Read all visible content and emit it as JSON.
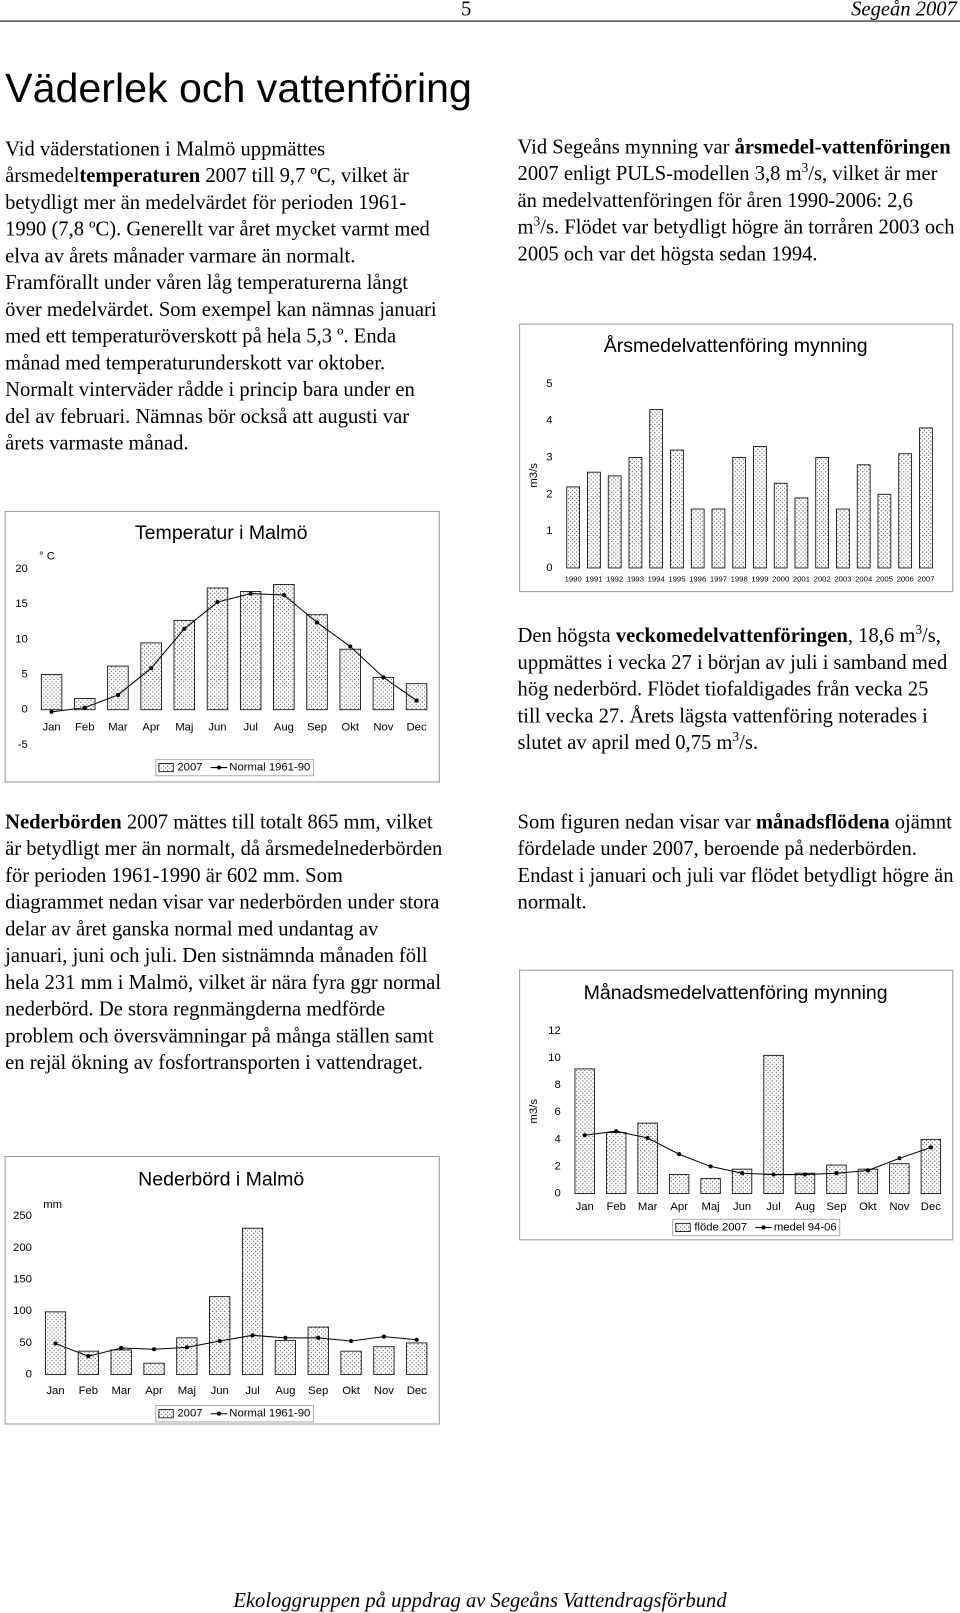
{
  "header": {
    "page": "5",
    "publication": "Segeån 2007"
  },
  "title": "Väderlek och vattenföring",
  "paragraphs": [
    [
      {
        "text": "Vid väderstationen i Malmö uppmättes årsmedel"
      },
      {
        "text": "temperaturen",
        "bold": true
      },
      {
        "text": " 2007 till 9,7 ºC, vilket är betydligt mer än medelvärdet för perioden 1961-1990 (7,8 ºC). Generellt var året mycket varmt med elva av årets månader varmare än normalt. Framförallt under våren låg temperaturerna långt över medelvärdet. Som exempel kan nämnas januari med ett temperaturöverskott på hela 5,3 º. Enda månad med temperaturunderskott var oktober. Normalt vinterväder rådde i princip bara under en del av februari. Nämnas bör också att augusti var årets varmaste månad."
      }
    ],
    [
      {
        "text": "Nederbörden",
        "bold": true
      },
      {
        "text": " 2007 mättes till totalt 865 mm, vilket är betydligt mer än normalt, då årsmedelnederbörden för perioden 1961-1990 är 602 mm. Som diagrammet nedan visar var nederbörden under stora delar av året ganska normal med undantag av januari, juni och juli. Den sistnämnda månaden föll hela 231 mm i Malmö, vilket är nära fyra ggr normal nederbörd. De stora regnmängderna medförde problem och översvämningar på många ställen samt en rejäl ökning av fosfortransporten i vattendraget."
      }
    ],
    [
      {
        "text": "Vid Segeåns mynning var "
      },
      {
        "text": "årsmedel-vattenföringen",
        "bold": true
      },
      {
        "text": " 2007 enligt PULS-modellen 3,8 m"
      },
      {
        "text": "3",
        "sup": true
      },
      {
        "text": "/s, vilket är mer än medelvattenföringen för åren 1990-2006: 2,6 m"
      },
      {
        "text": "3",
        "sup": true
      },
      {
        "text": "/s. Flödet var betydligt högre än torråren 2003 och 2005 och var det högsta sedan 1994."
      }
    ],
    [
      {
        "text": "Den högsta "
      },
      {
        "text": "veckomedelvattenföringen",
        "bold": true
      },
      {
        "text": ", 18,6 m"
      },
      {
        "text": "3",
        "sup": true
      },
      {
        "text": "/s, uppmättes i vecka 27 i början av juli i samband med hög nederbörd. Flödet tiofaldigades från vecka 25 till vecka 27. Årets lägsta vattenföring noterades i slutet av april med 0,75 m"
      },
      {
        "text": "3",
        "sup": true
      },
      {
        "text": "/s."
      }
    ],
    [
      {
        "text": "Som figuren nedan visar var "
      },
      {
        "text": "månadsflödena",
        "bold": true
      },
      {
        "text": " ojämnt fördelade under 2007, beroende på nederbörden. Endast i januari och juli var flödet betydligt högre än normalt."
      }
    ]
  ],
  "footer": "Ekologgruppen på uppdrag av Segeåns Vattendragsförbund",
  "chart_data": [
    {
      "type": "bar",
      "title": "Temperatur i Malmö",
      "unit": "° C",
      "categories": [
        "Jan",
        "Feb",
        "Mar",
        "Apr",
        "Maj",
        "Jun",
        "Jul",
        "Aug",
        "Sep",
        "Okt",
        "Nov",
        "Dec"
      ],
      "series": [
        {
          "name": "2007",
          "type": "bar",
          "color": "#000000",
          "values": [
            5.0,
            1.6,
            6.2,
            9.5,
            12.7,
            17.3,
            16.8,
            17.8,
            13.5,
            8.6,
            4.6,
            3.7
          ]
        },
        {
          "name": "Normal 1961-90",
          "type": "line",
          "color": "#000000",
          "values": [
            -0.3,
            0.3,
            2.1,
            5.9,
            11.5,
            15.3,
            16.5,
            16.3,
            12.4,
            9.0,
            4.6,
            1.3
          ]
        }
      ],
      "ylim": [
        -5,
        20
      ],
      "yticks": [
        20,
        15,
        10,
        5,
        0,
        -5
      ],
      "legend": "bottom"
    },
    {
      "type": "bar",
      "title": "Nederbörd i Malmö",
      "unit": "mm",
      "categories": [
        "Jan",
        "Feb",
        "Mar",
        "Apr",
        "Maj",
        "Jun",
        "Jul",
        "Aug",
        "Sep",
        "Okt",
        "Nov",
        "Dec"
      ],
      "series": [
        {
          "name": "2007",
          "type": "bar",
          "color": "#000000",
          "values": [
            99,
            37,
            39,
            18,
            58,
            123,
            231,
            54,
            75,
            37,
            44,
            50
          ]
        },
        {
          "name": "Normal 1961-90",
          "type": "line",
          "color": "#000000",
          "values": [
            49,
            29,
            42,
            40,
            43,
            53,
            62,
            58,
            58,
            53,
            60,
            55
          ]
        }
      ],
      "ylim": [
        0,
        250
      ],
      "yticks": [
        250,
        200,
        150,
        100,
        50,
        0
      ],
      "legend": "bottom"
    },
    {
      "type": "bar",
      "title": "Årsmedelvattenföring mynning",
      "unit": "m3/s",
      "categories": [
        "1990",
        "1991",
        "1992",
        "1993",
        "1994",
        "1995",
        "1996",
        "1997",
        "1998",
        "1999",
        "2000",
        "2001",
        "2002",
        "2003",
        "2004",
        "2005",
        "2006",
        "2007"
      ],
      "series": [
        {
          "type": "bar",
          "color": "#000000",
          "values": [
            2.2,
            2.6,
            2.5,
            3.0,
            4.3,
            3.2,
            1.6,
            1.6,
            3.0,
            3.3,
            2.3,
            1.9,
            3.0,
            1.6,
            2.8,
            2.0,
            3.1,
            3.8
          ]
        }
      ],
      "ylim": [
        0,
        5
      ],
      "yticks": [
        5,
        4,
        3,
        2,
        1,
        0
      ]
    },
    {
      "type": "bar",
      "title": "Månadsmedelvattenföring mynning",
      "unit": "m3/s",
      "categories": [
        "Jan",
        "Feb",
        "Mar",
        "Apr",
        "Maj",
        "Jun",
        "Jul",
        "Aug",
        "Sep",
        "Okt",
        "Nov",
        "Dec"
      ],
      "series": [
        {
          "name": "flöde 2007",
          "type": "bar",
          "color": "#000000",
          "values": [
            9.2,
            4.5,
            5.2,
            1.4,
            1.1,
            1.8,
            10.2,
            1.5,
            2.1,
            1.8,
            2.2,
            4.0
          ]
        },
        {
          "name": "medel 94-06",
          "type": "line",
          "color": "#000000",
          "values": [
            4.3,
            4.6,
            4.1,
            2.9,
            2.0,
            1.5,
            1.4,
            1.4,
            1.5,
            1.7,
            2.6,
            3.4
          ]
        }
      ],
      "ylim": [
        0,
        12
      ],
      "yticks": [
        12,
        10,
        8,
        6,
        4,
        2,
        0
      ],
      "legend": "bottom"
    }
  ]
}
